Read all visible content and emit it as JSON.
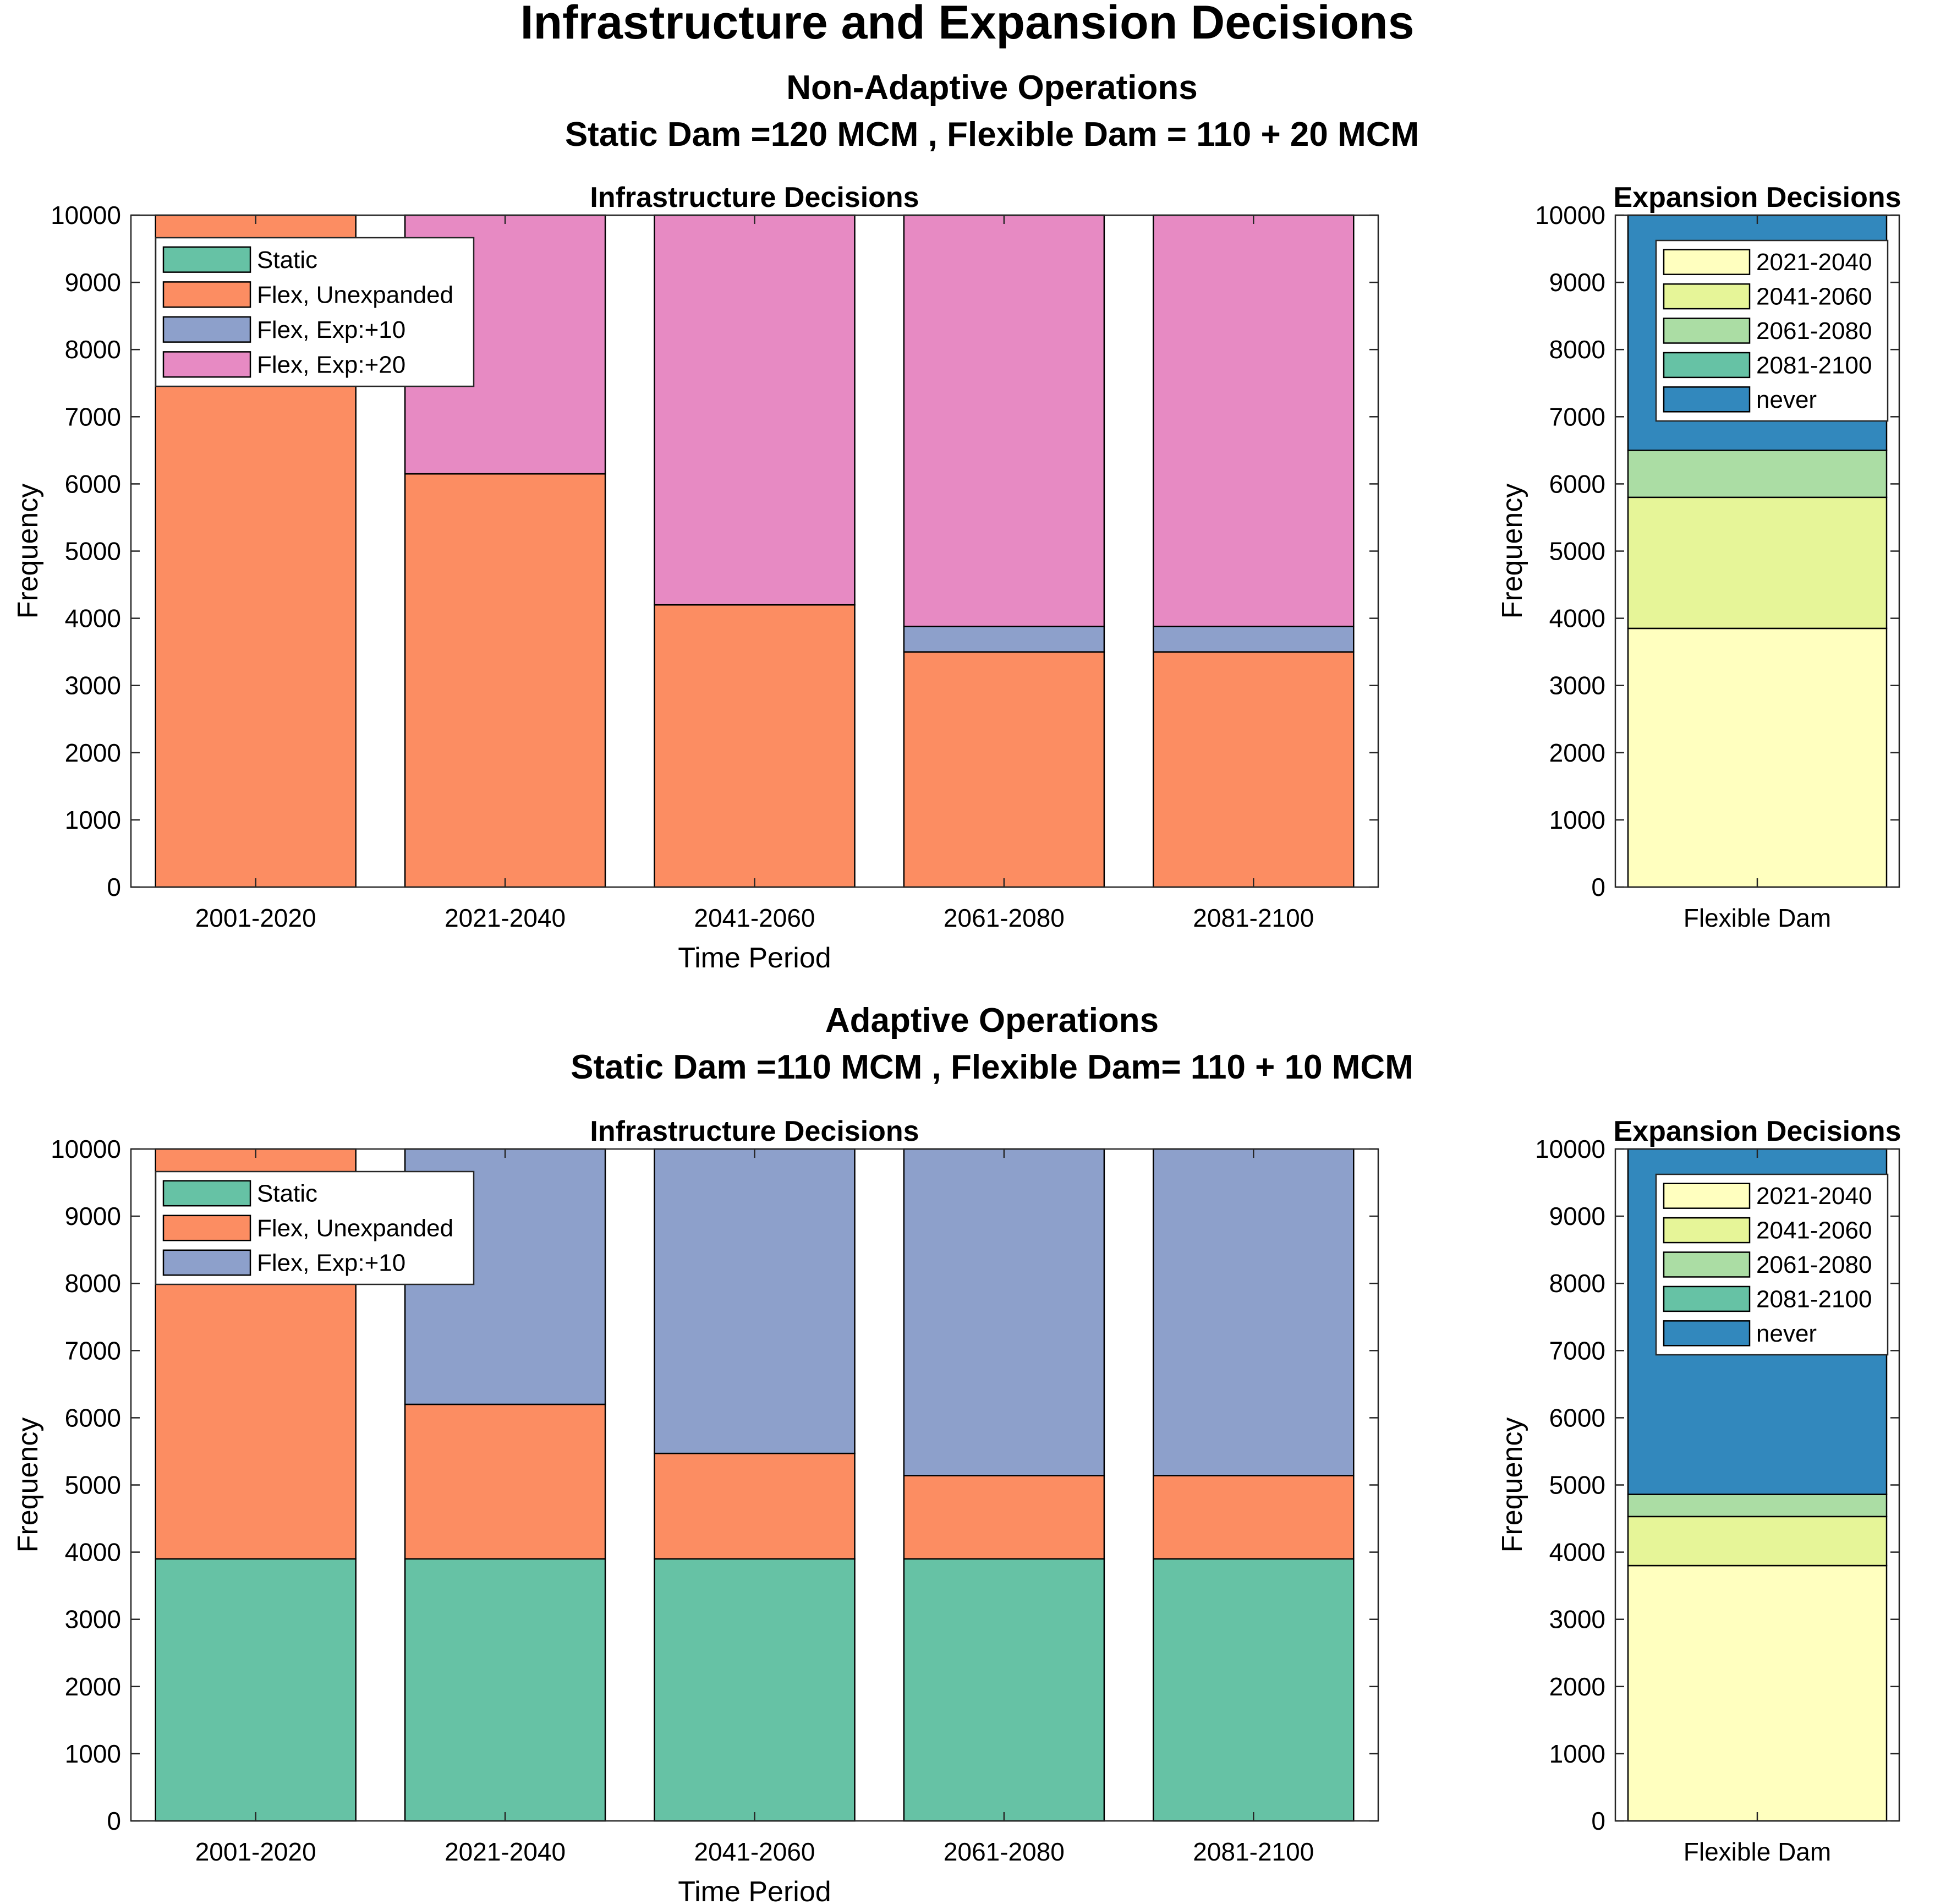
{
  "figure": {
    "title": "Infrastructure and Expansion Decisions",
    "sections": [
      {
        "title": "Non-Adaptive Operations",
        "subtitle": "Static Dam =120 MCM , Flexible Dam = 110 + 20 MCM"
      },
      {
        "title": "Adaptive Operations",
        "subtitle": "Static Dam =110 MCM , Flexible Dam= 110 + 10 MCM"
      }
    ]
  },
  "chart_data": [
    {
      "type": "bar",
      "stacked": true,
      "title": "Infrastructure Decisions",
      "xlabel": "Time Period",
      "ylabel": "Frequency",
      "ylim": [
        0,
        10000
      ],
      "yticks": [
        0,
        1000,
        2000,
        3000,
        4000,
        5000,
        6000,
        7000,
        8000,
        9000,
        10000
      ],
      "categories": [
        "2001-2020",
        "2021-2040",
        "2041-2060",
        "2061-2080",
        "2081-2100"
      ],
      "legend_position": "top-left",
      "series": [
        {
          "name": "Static",
          "color": "#66c2a5",
          "values": [
            0,
            0,
            0,
            0,
            0
          ]
        },
        {
          "name": "Flex, Unexpanded",
          "color": "#fc8d62",
          "values": [
            10000,
            6150,
            4200,
            3500,
            3500
          ]
        },
        {
          "name": "Flex, Exp:+10",
          "color": "#8da0cb",
          "values": [
            0,
            0,
            0,
            380,
            380
          ]
        },
        {
          "name": "Flex, Exp:+20",
          "color": "#e78ac3",
          "values": [
            0,
            3850,
            5800,
            6120,
            6120
          ]
        }
      ]
    },
    {
      "type": "bar",
      "stacked": true,
      "title": "Expansion Decisions",
      "xlabel": "",
      "ylabel": "Frequency",
      "ylim": [
        0,
        10000
      ],
      "yticks": [
        0,
        1000,
        2000,
        3000,
        4000,
        5000,
        6000,
        7000,
        8000,
        9000,
        10000
      ],
      "categories": [
        "Flexible Dam"
      ],
      "legend_position": "top",
      "series": [
        {
          "name": "2021-2040",
          "color": "#ffffbf",
          "values": [
            3850
          ]
        },
        {
          "name": "2041-2060",
          "color": "#e6f598",
          "values": [
            1950
          ]
        },
        {
          "name": "2061-2080",
          "color": "#abdda4",
          "values": [
            700
          ]
        },
        {
          "name": "2081-2100",
          "color": "#66c2a5",
          "values": [
            0
          ]
        },
        {
          "name": "never",
          "color": "#3288bd",
          "values": [
            3500
          ]
        }
      ]
    },
    {
      "type": "bar",
      "stacked": true,
      "title": "Infrastructure Decisions",
      "xlabel": "Time Period",
      "ylabel": "Frequency",
      "ylim": [
        0,
        10000
      ],
      "yticks": [
        0,
        1000,
        2000,
        3000,
        4000,
        5000,
        6000,
        7000,
        8000,
        9000,
        10000
      ],
      "categories": [
        "2001-2020",
        "2021-2040",
        "2041-2060",
        "2061-2080",
        "2081-2100"
      ],
      "legend_position": "top-left",
      "series": [
        {
          "name": "Static",
          "color": "#66c2a5",
          "values": [
            3900,
            3900,
            3900,
            3900,
            3900
          ]
        },
        {
          "name": "Flex, Unexpanded",
          "color": "#fc8d62",
          "values": [
            6100,
            2300,
            1570,
            1240,
            1240
          ]
        },
        {
          "name": "Flex, Exp:+10",
          "color": "#8da0cb",
          "values": [
            0,
            3800,
            4530,
            4860,
            4860
          ]
        }
      ]
    },
    {
      "type": "bar",
      "stacked": true,
      "title": "Expansion Decisions",
      "xlabel": "",
      "ylabel": "Frequency",
      "ylim": [
        0,
        10000
      ],
      "yticks": [
        0,
        1000,
        2000,
        3000,
        4000,
        5000,
        6000,
        7000,
        8000,
        9000,
        10000
      ],
      "categories": [
        "Flexible Dam"
      ],
      "legend_position": "top",
      "series": [
        {
          "name": "2021-2040",
          "color": "#ffffbf",
          "values": [
            3800
          ]
        },
        {
          "name": "2041-2060",
          "color": "#e6f598",
          "values": [
            730
          ]
        },
        {
          "name": "2061-2080",
          "color": "#abdda4",
          "values": [
            330
          ]
        },
        {
          "name": "2081-2100",
          "color": "#66c2a5",
          "values": [
            0
          ]
        },
        {
          "name": "never",
          "color": "#3288bd",
          "values": [
            5140
          ]
        }
      ]
    }
  ]
}
